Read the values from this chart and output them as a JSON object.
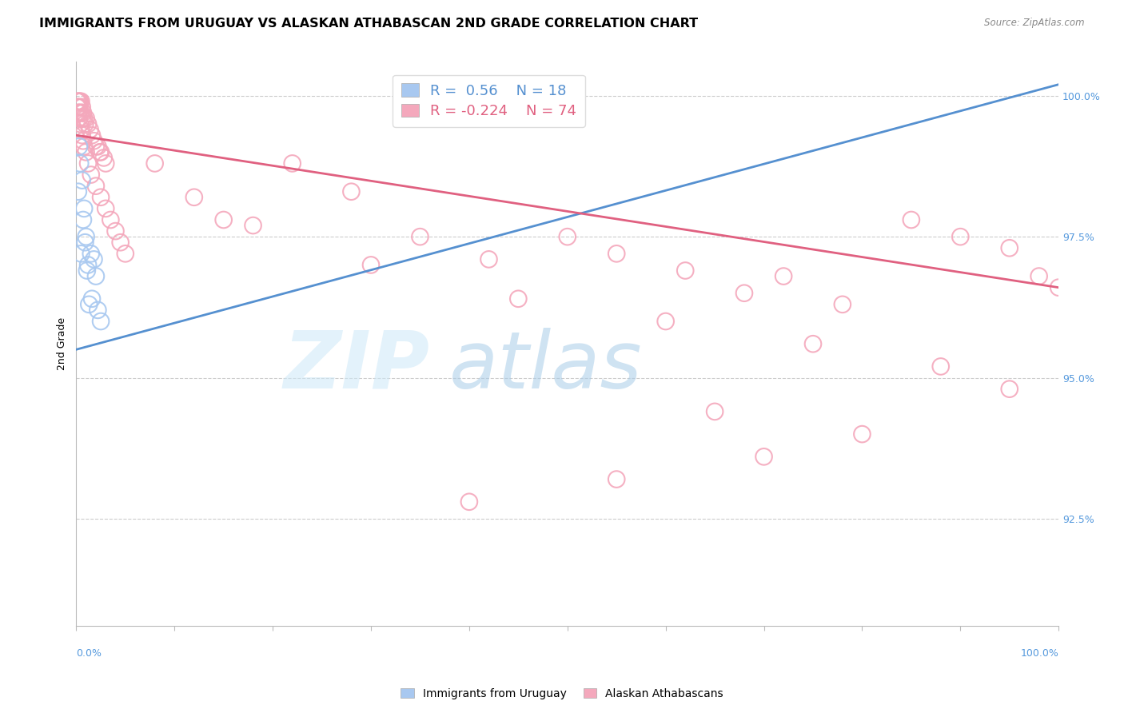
{
  "title": "IMMIGRANTS FROM URUGUAY VS ALASKAN ATHABASCAN 2ND GRADE CORRELATION CHART",
  "source": "Source: ZipAtlas.com",
  "ylabel": "2nd Grade",
  "x_min": 0.0,
  "x_max": 1.0,
  "y_min": 0.906,
  "y_max": 1.006,
  "y_ticks": [
    0.925,
    0.95,
    0.975,
    1.0
  ],
  "y_tick_labels": [
    "92.5%",
    "95.0%",
    "97.5%",
    "100.0%"
  ],
  "blue_color": "#a8c8f0",
  "pink_color": "#f4a8bc",
  "blue_line_color": "#5590d0",
  "pink_line_color": "#e06080",
  "R_blue": 0.56,
  "N_blue": 18,
  "R_pink": -0.224,
  "N_pink": 74,
  "watermark_zip": "ZIP",
  "watermark_atlas": "atlas",
  "grid_color": "#cccccc",
  "background_color": "#ffffff",
  "title_fontsize": 11.5,
  "axis_label_fontsize": 9,
  "tick_fontsize": 9,
  "legend_fontsize": 13,
  "blue_x": [
    0.002,
    0.003,
    0.004,
    0.005,
    0.006,
    0.007,
    0.008,
    0.009,
    0.01,
    0.011,
    0.012,
    0.013,
    0.015,
    0.016,
    0.018,
    0.02,
    0.022,
    0.025
  ],
  "blue_y": [
    0.983,
    0.991,
    0.988,
    0.972,
    0.985,
    0.978,
    0.98,
    0.974,
    0.975,
    0.969,
    0.97,
    0.963,
    0.972,
    0.964,
    0.971,
    0.968,
    0.962,
    0.96
  ],
  "pink_x_near": [
    0.001,
    0.001,
    0.002,
    0.002,
    0.002,
    0.003,
    0.003,
    0.004,
    0.004,
    0.005,
    0.005,
    0.006,
    0.006,
    0.007,
    0.008,
    0.009,
    0.01,
    0.012,
    0.014,
    0.016,
    0.018,
    0.02,
    0.022,
    0.024,
    0.025,
    0.028,
    0.03,
    0.002,
    0.003,
    0.004,
    0.005,
    0.006,
    0.007,
    0.008,
    0.01,
    0.012,
    0.015,
    0.02,
    0.025,
    0.03,
    0.035,
    0.04,
    0.045,
    0.05
  ],
  "pink_y_near": [
    0.999,
    0.998,
    0.999,
    0.998,
    0.997,
    0.999,
    0.998,
    0.999,
    0.997,
    0.999,
    0.997,
    0.998,
    0.996,
    0.997,
    0.996,
    0.995,
    0.996,
    0.995,
    0.994,
    0.993,
    0.992,
    0.991,
    0.991,
    0.99,
    0.99,
    0.989,
    0.988,
    0.997,
    0.996,
    0.995,
    0.994,
    0.993,
    0.992,
    0.991,
    0.99,
    0.988,
    0.986,
    0.984,
    0.982,
    0.98,
    0.978,
    0.976,
    0.974,
    0.972
  ],
  "pink_x_spread": [
    0.08,
    0.12,
    0.18,
    0.22,
    0.28,
    0.35,
    0.42,
    0.5,
    0.55,
    0.62,
    0.68,
    0.72,
    0.78,
    0.85,
    0.9,
    0.95,
    0.98,
    1.0,
    0.15,
    0.3,
    0.45,
    0.6,
    0.75,
    0.88,
    0.95,
    0.65,
    0.8,
    0.7,
    0.55,
    0.4
  ],
  "pink_y_spread": [
    0.988,
    0.982,
    0.977,
    0.988,
    0.983,
    0.975,
    0.971,
    0.975,
    0.972,
    0.969,
    0.965,
    0.968,
    0.963,
    0.978,
    0.975,
    0.973,
    0.968,
    0.966,
    0.978,
    0.97,
    0.964,
    0.96,
    0.956,
    0.952,
    0.948,
    0.944,
    0.94,
    0.936,
    0.932,
    0.928
  ]
}
